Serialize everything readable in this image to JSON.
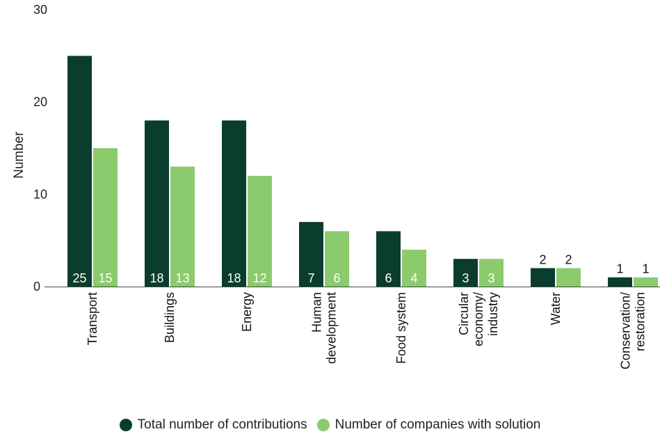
{
  "chart_data": {
    "type": "bar",
    "title": "",
    "xlabel": "",
    "ylabel": "Number",
    "ylim": [
      0,
      30
    ],
    "yticks": [
      0,
      10,
      20,
      30
    ],
    "grid": false,
    "legend_position": "bottom",
    "categories": [
      "Transport",
      "Buildings",
      "Energy",
      "Human development",
      "Food system",
      "Circular economy/ industry",
      "Water",
      "Conservation/ restoration"
    ],
    "category_lines": [
      [
        "Transport"
      ],
      [
        "Buildings"
      ],
      [
        "Energy"
      ],
      [
        "Human",
        "development"
      ],
      [
        "Food system"
      ],
      [
        "Circular",
        "economy/",
        "industry"
      ],
      [
        "Water"
      ],
      [
        "Conservation/",
        "restoration"
      ]
    ],
    "series": [
      {
        "name": "Total number of contributions",
        "color": "#0b3d2e",
        "values": [
          25,
          18,
          18,
          7,
          6,
          3,
          2,
          1
        ]
      },
      {
        "name": "Number of companies with solution",
        "color": "#8bcb6d",
        "values": [
          15,
          13,
          12,
          6,
          4,
          3,
          2,
          1
        ]
      }
    ]
  }
}
